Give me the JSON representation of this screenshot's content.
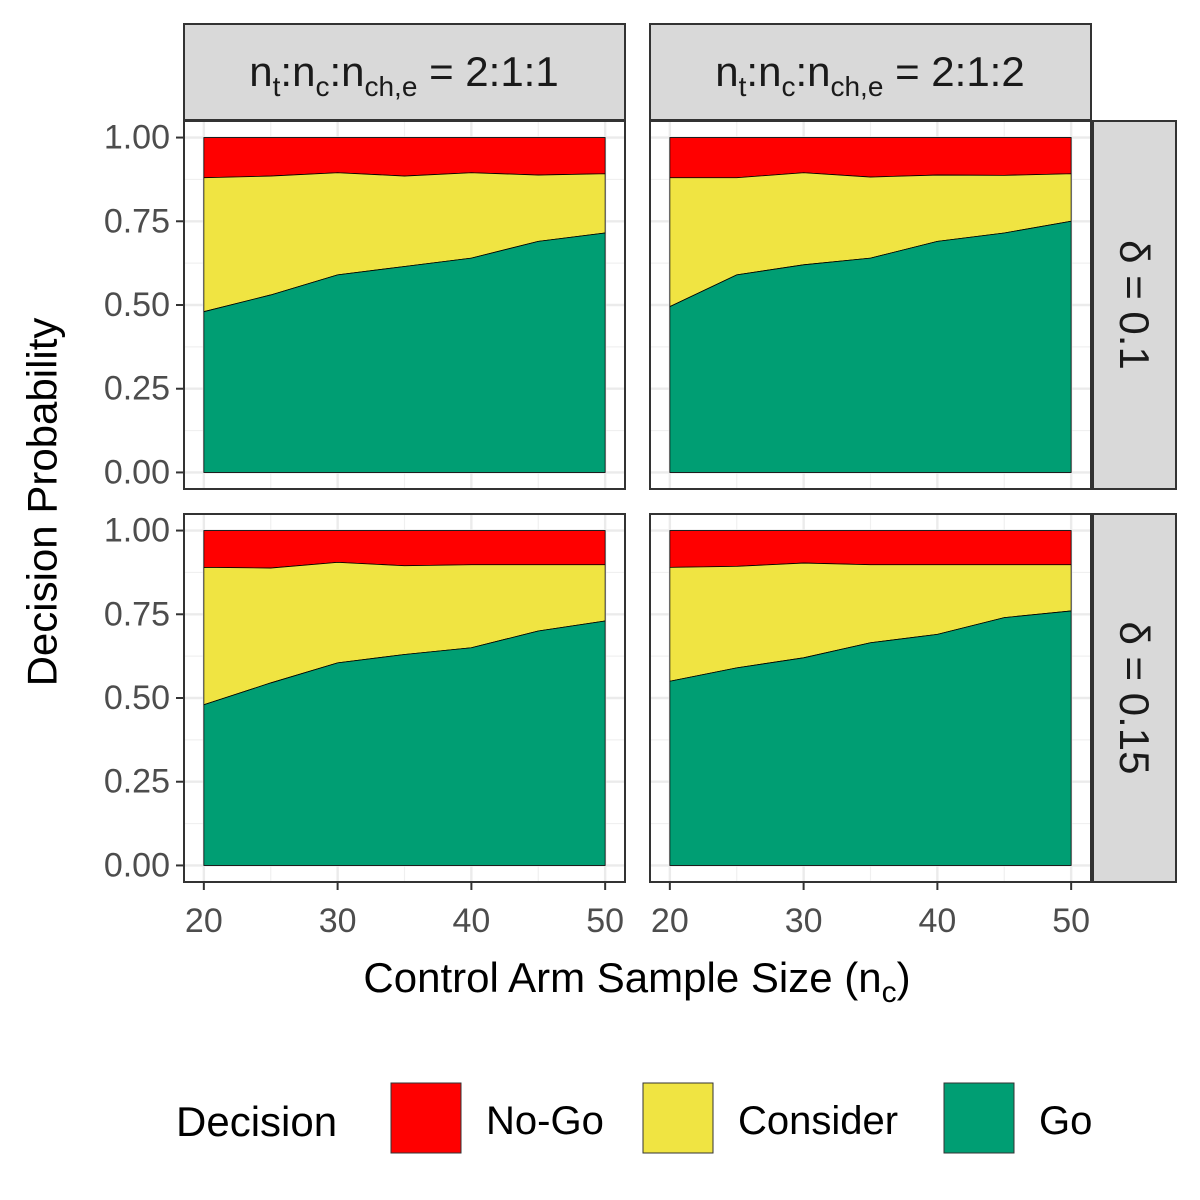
{
  "chart_data": {
    "type": "area",
    "stacked": true,
    "x": [
      20,
      25,
      30,
      35,
      40,
      45,
      50
    ],
    "xlabel": "Control Arm Sample Size (n",
    "xlabel_sub": "c",
    "xlabel_close": ")",
    "ylabel": "Decision Probability",
    "ylim": [
      0,
      1
    ],
    "xlim": [
      20,
      50
    ],
    "x_ticks": [
      "20",
      "30",
      "40",
      "50"
    ],
    "x_tick_values": [
      20,
      30,
      40,
      50
    ],
    "y_ticks": [
      "0.00",
      "0.25",
      "0.50",
      "0.75",
      "1.00"
    ],
    "y_tick_values": [
      0,
      0.25,
      0.5,
      0.75,
      1
    ],
    "grid": true,
    "legend_position": "bottom",
    "legend": {
      "title": "Decision",
      "entries": [
        {
          "label": "No-Go",
          "color": "#FF0000"
        },
        {
          "label": "Consider",
          "color": "#F0E442"
        },
        {
          "label": "Go",
          "color": "#009E73"
        }
      ]
    },
    "col_facets": [
      {
        "prefix": "n",
        "sub1": "t",
        "colon1": ":n",
        "sub2": "c",
        "colon2": ":n",
        "sub3": "ch,e",
        "suffix": " = 2:1:1"
      },
      {
        "prefix": "n",
        "sub1": "t",
        "colon1": ":n",
        "sub2": "c",
        "colon2": ":n",
        "sub3": "ch,e",
        "suffix": " = 2:1:2"
      }
    ],
    "row_facets": [
      "δ = 0.1",
      "δ = 0.15"
    ],
    "panels": [
      {
        "row": 0,
        "col": 0,
        "go": [
          0.48,
          0.53,
          0.59,
          0.615,
          0.64,
          0.69,
          0.715
        ],
        "go_plus_consider": [
          0.88,
          0.885,
          0.895,
          0.885,
          0.895,
          0.888,
          0.892
        ]
      },
      {
        "row": 0,
        "col": 1,
        "go": [
          0.495,
          0.59,
          0.62,
          0.64,
          0.69,
          0.715,
          0.75
        ],
        "go_plus_consider": [
          0.88,
          0.88,
          0.895,
          0.882,
          0.888,
          0.887,
          0.892
        ]
      },
      {
        "row": 1,
        "col": 0,
        "go": [
          0.48,
          0.545,
          0.605,
          0.63,
          0.65,
          0.7,
          0.73
        ],
        "go_plus_consider": [
          0.89,
          0.888,
          0.905,
          0.895,
          0.898,
          0.898,
          0.898
        ]
      },
      {
        "row": 1,
        "col": 1,
        "go": [
          0.55,
          0.59,
          0.62,
          0.665,
          0.69,
          0.74,
          0.76
        ],
        "go_plus_consider": [
          0.89,
          0.893,
          0.903,
          0.898,
          0.898,
          0.898,
          0.898
        ]
      }
    ]
  }
}
